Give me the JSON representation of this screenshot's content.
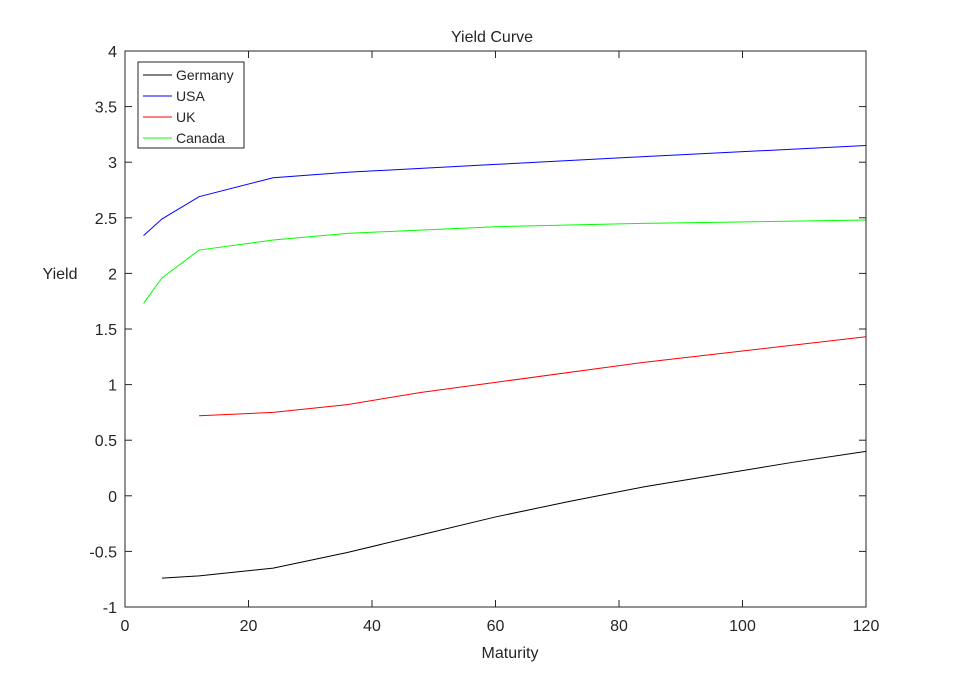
{
  "chart_data": {
    "type": "line",
    "title": "Yield Curve",
    "xlabel": "Maturity",
    "ylabel": "Yield",
    "xlim": [
      0,
      120
    ],
    "ylim": [
      -1,
      4
    ],
    "xticks": [
      0,
      20,
      40,
      60,
      80,
      100,
      120
    ],
    "yticks": [
      -1,
      -0.5,
      0,
      0.5,
      1,
      1.5,
      2,
      2.5,
      3,
      3.5,
      4
    ],
    "xtick_labels": [
      "0",
      "20",
      "40",
      "60",
      "80",
      "100",
      "120"
    ],
    "ytick_labels": [
      "-1",
      "-0.5",
      "0",
      "0.5",
      "1",
      "1.5",
      "2",
      "2.5",
      "3",
      "3.5",
      "4"
    ],
    "grid": false,
    "legend_position": "top-left",
    "series": [
      {
        "name": "Germany",
        "color": "#000000",
        "x": [
          6,
          12,
          24,
          36,
          48,
          60,
          72,
          84,
          96,
          108,
          120
        ],
        "y": [
          -0.74,
          -0.72,
          -0.65,
          -0.51,
          -0.35,
          -0.19,
          -0.05,
          0.08,
          0.19,
          0.3,
          0.4
        ]
      },
      {
        "name": "USA",
        "color": "#0000ff",
        "x": [
          3,
          6,
          12,
          24,
          36,
          60,
          84,
          120
        ],
        "y": [
          2.34,
          2.49,
          2.69,
          2.86,
          2.91,
          2.98,
          3.05,
          3.15
        ]
      },
      {
        "name": "UK",
        "color": "#ff0000",
        "x": [
          12,
          24,
          36,
          48,
          60,
          84,
          120
        ],
        "y": [
          0.72,
          0.75,
          0.82,
          0.93,
          1.02,
          1.2,
          1.43
        ]
      },
      {
        "name": "Canada",
        "color": "#00ff00",
        "x": [
          3,
          6,
          12,
          24,
          36,
          60,
          84,
          120
        ],
        "y": [
          1.73,
          1.96,
          2.21,
          2.3,
          2.36,
          2.42,
          2.45,
          2.48
        ]
      }
    ]
  }
}
